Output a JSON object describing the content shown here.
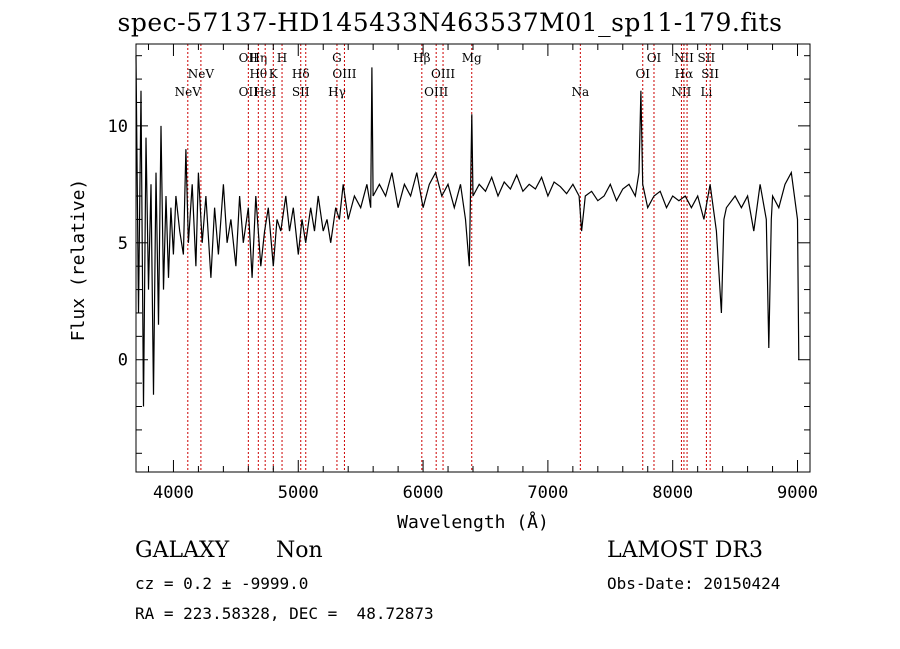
{
  "chart_data": {
    "type": "line",
    "title": "spec-57137-HD145433N463537M01_sp11-179.fits",
    "xlabel": "Wavelength (Å)",
    "ylabel": "Flux (relative)",
    "xlim": [
      3700,
      9100
    ],
    "ylim": [
      -4.8,
      13.5
    ],
    "xticks": [
      4000,
      5000,
      6000,
      7000,
      8000,
      9000
    ],
    "xtick_labels": [
      "4000",
      "5000",
      "6000",
      "7000",
      "8000",
      "9000"
    ],
    "yticks": [
      0,
      5,
      10
    ],
    "ytick_labels": [
      "0",
      "5",
      "10"
    ],
    "series": [
      {
        "name": "spectrum",
        "x": [
          3700,
          3720,
          3740,
          3760,
          3780,
          3800,
          3820,
          3840,
          3860,
          3880,
          3900,
          3920,
          3940,
          3960,
          3980,
          4000,
          4020,
          4050,
          4080,
          4100,
          4120,
          4150,
          4180,
          4200,
          4230,
          4260,
          4300,
          4330,
          4360,
          4400,
          4430,
          4460,
          4500,
          4530,
          4560,
          4600,
          4630,
          4660,
          4700,
          4730,
          4760,
          4800,
          4830,
          4860,
          4900,
          4930,
          4960,
          5000,
          5030,
          5060,
          5100,
          5130,
          5160,
          5200,
          5230,
          5260,
          5300,
          5330,
          5360,
          5400,
          5450,
          5500,
          5550,
          5580,
          5590,
          5600,
          5650,
          5700,
          5750,
          5800,
          5850,
          5900,
          5950,
          6000,
          6050,
          6100,
          6150,
          6200,
          6250,
          6300,
          6340,
          6370,
          6390,
          6400,
          6450,
          6500,
          6550,
          6600,
          6650,
          6700,
          6750,
          6800,
          6850,
          6900,
          6950,
          7000,
          7050,
          7100,
          7150,
          7200,
          7250,
          7270,
          7290,
          7300,
          7350,
          7400,
          7450,
          7500,
          7550,
          7600,
          7650,
          7700,
          7730,
          7745,
          7760,
          7780,
          7800,
          7850,
          7900,
          7950,
          8000,
          8050,
          8100,
          8150,
          8200,
          8250,
          8300,
          8350,
          8390,
          8410,
          8430,
          8500,
          8550,
          8600,
          8650,
          8700,
          8750,
          8770,
          8790,
          8800,
          8850,
          8900,
          8950,
          9000,
          9010
        ],
        "values": [
          13.0,
          2.0,
          11.5,
          -2.0,
          9.5,
          3.0,
          7.5,
          -1.5,
          8.0,
          1.5,
          10.0,
          3.0,
          7.0,
          3.5,
          6.5,
          4.5,
          7.0,
          5.5,
          4.5,
          9.0,
          5.0,
          7.5,
          4.0,
          8.0,
          5.0,
          7.0,
          3.5,
          6.5,
          4.5,
          7.5,
          5.0,
          6.0,
          4.0,
          7.0,
          5.0,
          6.5,
          3.5,
          7.0,
          4.0,
          5.5,
          6.5,
          4.0,
          6.0,
          5.5,
          7.0,
          5.5,
          6.5,
          4.5,
          6.0,
          5.0,
          6.5,
          5.5,
          7.0,
          5.5,
          6.0,
          5.0,
          6.5,
          6.0,
          7.5,
          6.0,
          7.0,
          6.5,
          7.5,
          6.5,
          12.5,
          7.0,
          7.5,
          7.0,
          8.0,
          6.5,
          7.5,
          7.0,
          8.0,
          6.5,
          7.5,
          8.0,
          7.0,
          7.5,
          6.5,
          7.5,
          6.0,
          4.0,
          10.5,
          7.0,
          7.5,
          7.2,
          7.8,
          7.0,
          7.6,
          7.3,
          7.9,
          7.2,
          7.5,
          7.3,
          7.8,
          7.0,
          7.6,
          7.4,
          7.1,
          7.5,
          7.0,
          5.5,
          6.5,
          7.0,
          7.2,
          6.8,
          7.0,
          7.5,
          6.8,
          7.3,
          7.5,
          7.0,
          8.0,
          11.5,
          7.5,
          7.0,
          6.5,
          7.0,
          7.2,
          6.5,
          7.0,
          6.8,
          7.0,
          6.5,
          7.0,
          6.0,
          7.5,
          5.5,
          2.0,
          6.0,
          6.5,
          7.0,
          6.5,
          7.0,
          5.5,
          7.5,
          6.0,
          0.5,
          6.0,
          7.0,
          6.5,
          7.5,
          8.0,
          6.0,
          0.0
        ],
        "color": "#000000"
      }
    ],
    "line_markers": {
      "color": "#cc0000",
      "lines": [
        {
          "wavelength": 4115,
          "labels": [
            {
              "text": "NeV",
              "row": 3
            }
          ]
        },
        {
          "wavelength": 4220,
          "labels": [
            {
              "text": "NeV",
              "row": 2
            }
          ]
        },
        {
          "wavelength": 4600,
          "labels": [
            {
              "text": "OII",
              "row": 1
            },
            {
              "text": "OII",
              "row": 3
            }
          ]
        },
        {
          "wavelength": 4680,
          "labels": [
            {
              "text": "Hη",
              "row": 1
            },
            {
              "text": "Hθ",
              "row": 2
            }
          ]
        },
        {
          "wavelength": 4735,
          "labels": [
            {
              "text": "HeI",
              "row": 3
            }
          ]
        },
        {
          "wavelength": 4800,
          "labels": [
            {
              "text": "K",
              "row": 2
            }
          ]
        },
        {
          "wavelength": 4870,
          "labels": [
            {
              "text": "H",
              "row": 1
            }
          ]
        },
        {
          "wavelength": 5020,
          "labels": [
            {
              "text": "Hδ",
              "row": 2
            },
            {
              "text": "SII",
              "row": 3
            }
          ]
        },
        {
          "wavelength": 5060,
          "labels": []
        },
        {
          "wavelength": 5310,
          "labels": [
            {
              "text": "G",
              "row": 1
            },
            {
              "text": "Hγ",
              "row": 3
            }
          ]
        },
        {
          "wavelength": 5370,
          "labels": [
            {
              "text": "OIII",
              "row": 2
            }
          ]
        },
        {
          "wavelength": 5990,
          "labels": [
            {
              "text": "Hβ",
              "row": 1
            }
          ]
        },
        {
          "wavelength": 6105,
          "labels": [
            {
              "text": "OIII",
              "row": 3
            }
          ]
        },
        {
          "wavelength": 6160,
          "labels": [
            {
              "text": "OIII",
              "row": 2
            }
          ]
        },
        {
          "wavelength": 6390,
          "labels": [
            {
              "text": "Mg",
              "row": 1
            }
          ]
        },
        {
          "wavelength": 7260,
          "labels": [
            {
              "text": "Na",
              "row": 3
            }
          ]
        },
        {
          "wavelength": 7760,
          "labels": [
            {
              "text": "OI",
              "row": 2
            }
          ]
        },
        {
          "wavelength": 7850,
          "labels": [
            {
              "text": "OI",
              "row": 1
            }
          ]
        },
        {
          "wavelength": 8070,
          "labels": [
            {
              "text": "NII",
              "row": 3
            }
          ]
        },
        {
          "wavelength": 8090,
          "labels": [
            {
              "text": "NII",
              "row": 1
            },
            {
              "text": "Hα",
              "row": 2
            }
          ]
        },
        {
          "wavelength": 8115,
          "labels": []
        },
        {
          "wavelength": 8270,
          "labels": [
            {
              "text": "SII",
              "row": 1
            },
            {
              "text": "Li",
              "row": 3
            }
          ]
        },
        {
          "wavelength": 8300,
          "labels": [
            {
              "text": "SII",
              "row": 2
            }
          ]
        }
      ]
    }
  },
  "info": {
    "class": "GALAXY",
    "subclass": "Non",
    "survey": "LAMOST DR3",
    "cz": "cz = 0.2 ± -9999.0",
    "obs_date": "Obs-Date: 20150424",
    "coords": "RA = 223.58328, DEC =  48.72873"
  }
}
